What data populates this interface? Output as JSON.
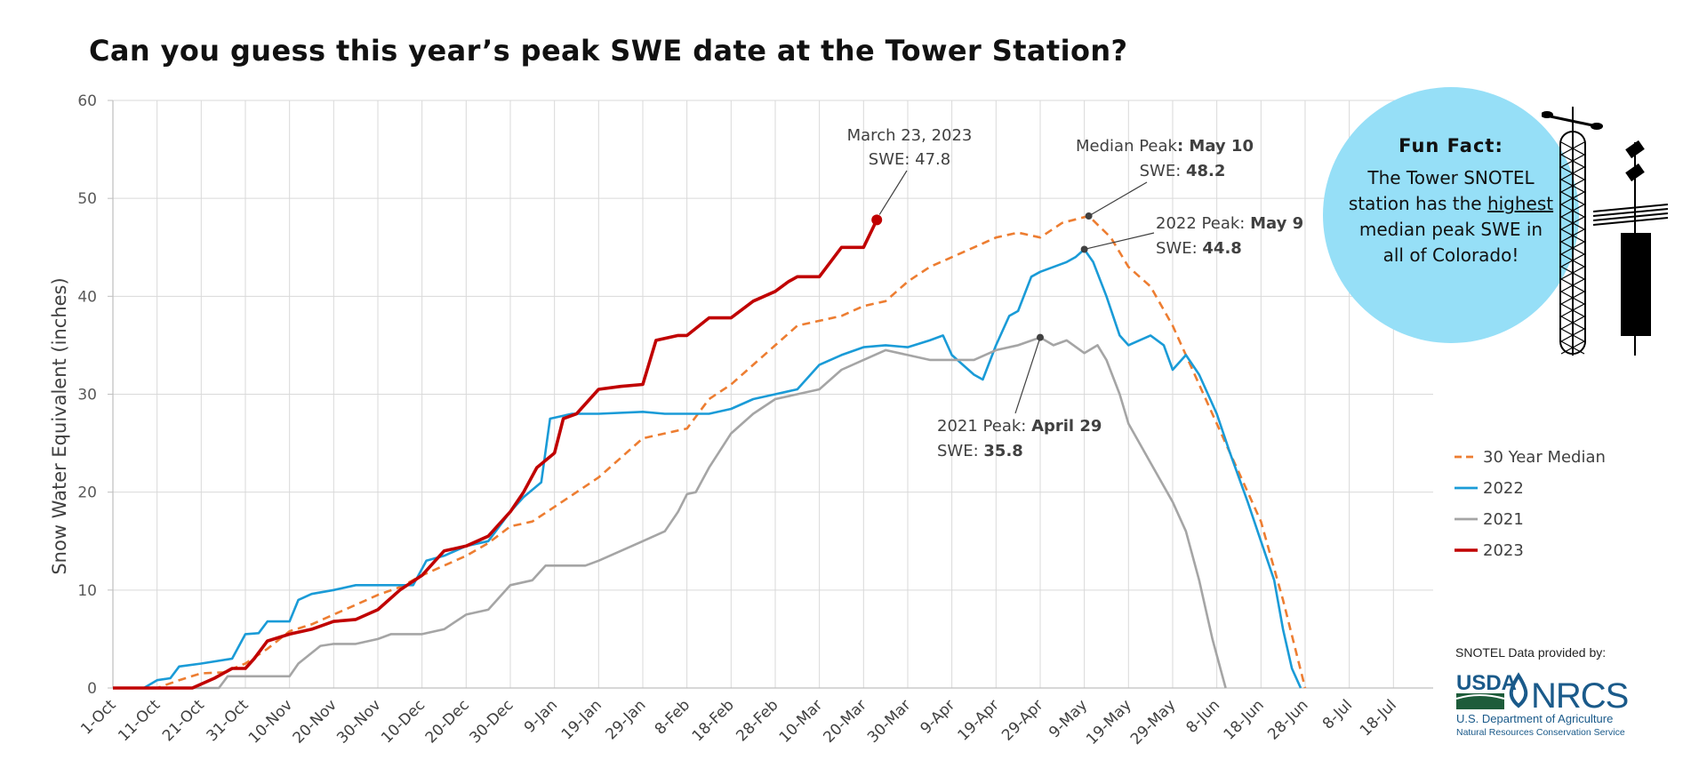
{
  "title": "Can you guess this year’s peak SWE date at the Tower Station?",
  "chart_data": {
    "type": "line",
    "ylabel": "Snow Water Equivalent (inches)",
    "xlabel": "",
    "ylim": [
      0,
      60
    ],
    "yticks": [
      0,
      10,
      20,
      30,
      40,
      50,
      60
    ],
    "xlim": [
      "Oct-1",
      "Jul-27"
    ],
    "xtick_labels": [
      "1-Oct",
      "11-Oct",
      "21-Oct",
      "31-Oct",
      "10-Nov",
      "20-Nov",
      "30-Nov",
      "10-Dec",
      "20-Dec",
      "30-Dec",
      "9-Jan",
      "19-Jan",
      "29-Jan",
      "8-Feb",
      "18-Feb",
      "28-Feb",
      "10-Mar",
      "20-Mar",
      "30-Mar",
      "9-Apr",
      "19-Apr",
      "29-Apr",
      "9-May",
      "19-May",
      "29-May",
      "8-Jun",
      "18-Jun",
      "28-Jun",
      "8-Jul",
      "18-Jul"
    ],
    "grid": true,
    "legend_position": "right",
    "series": [
      {
        "name": "30 Year Median",
        "color": "#ed7d31",
        "style": "dashed",
        "points": [
          [
            "Oct-1",
            0
          ],
          [
            "Oct-11",
            0
          ],
          [
            "Oct-16",
            0.8
          ],
          [
            "Oct-21",
            1.5
          ],
          [
            "Oct-26",
            1.6
          ],
          [
            "Oct-31",
            2.5
          ],
          [
            "Nov-5",
            4
          ],
          [
            "Nov-10",
            5.8
          ],
          [
            "Nov-15",
            6.5
          ],
          [
            "Nov-20",
            7.5
          ],
          [
            "Nov-25",
            8.5
          ],
          [
            "Nov-30",
            9.5
          ],
          [
            "Dec-5",
            10.3
          ],
          [
            "Dec-10",
            11.5
          ],
          [
            "Dec-15",
            12.5
          ],
          [
            "Dec-20",
            13.5
          ],
          [
            "Dec-25",
            14.8
          ],
          [
            "Dec-30",
            16.5
          ],
          [
            "Jan-4",
            17
          ],
          [
            "Jan-9",
            18.5
          ],
          [
            "Jan-14",
            20
          ],
          [
            "Jan-19",
            21.5
          ],
          [
            "Jan-24",
            23.5
          ],
          [
            "Jan-29",
            25.5
          ],
          [
            "Feb-3",
            26
          ],
          [
            "Feb-8",
            26.5
          ],
          [
            "Feb-13",
            29.5
          ],
          [
            "Feb-18",
            31
          ],
          [
            "Feb-23",
            33
          ],
          [
            "Feb-28",
            35
          ],
          [
            "Mar-5",
            37
          ],
          [
            "Mar-10",
            37.5
          ],
          [
            "Mar-15",
            38
          ],
          [
            "Mar-20",
            39
          ],
          [
            "Mar-25",
            39.5
          ],
          [
            "Mar-30",
            41.5
          ],
          [
            "Apr-4",
            43
          ],
          [
            "Apr-9",
            44
          ],
          [
            "Apr-14",
            45
          ],
          [
            "Apr-19",
            46
          ],
          [
            "Apr-24",
            46.5
          ],
          [
            "Apr-29",
            46
          ],
          [
            "May-4",
            47.5
          ],
          [
            "May-10",
            48.2
          ],
          [
            "May-15",
            46
          ],
          [
            "May-19",
            43
          ],
          [
            "May-24",
            41
          ],
          [
            "May-29",
            37
          ],
          [
            "Jun-3",
            32
          ],
          [
            "Jun-8",
            27
          ],
          [
            "Jun-13",
            22
          ],
          [
            "Jun-18",
            17
          ],
          [
            "Jun-23",
            9
          ],
          [
            "Jun-28",
            0
          ]
        ]
      },
      {
        "name": "2022",
        "color": "#1a9bd7",
        "style": "solid",
        "points": [
          [
            "Oct-1",
            0
          ],
          [
            "Oct-8",
            0
          ],
          [
            "Oct-11",
            0.8
          ],
          [
            "Oct-14",
            1
          ],
          [
            "Oct-16",
            2.2
          ],
          [
            "Oct-21",
            2.5
          ],
          [
            "Oct-28",
            3
          ],
          [
            "Oct-31",
            5.5
          ],
          [
            "Nov-3",
            5.6
          ],
          [
            "Nov-5",
            6.8
          ],
          [
            "Nov-10",
            6.8
          ],
          [
            "Nov-12",
            9
          ],
          [
            "Nov-15",
            9.6
          ],
          [
            "Nov-20",
            10
          ],
          [
            "Nov-25",
            10.5
          ],
          [
            "Nov-30",
            10.5
          ],
          [
            "Dec-8",
            10.5
          ],
          [
            "Dec-11",
            13
          ],
          [
            "Dec-15",
            13.5
          ],
          [
            "Dec-20",
            14.5
          ],
          [
            "Dec-25",
            15
          ],
          [
            "Dec-30",
            18
          ],
          [
            "Jan-2",
            19.5
          ],
          [
            "Jan-6",
            21
          ],
          [
            "Jan-8",
            27.5
          ],
          [
            "Jan-13",
            28
          ],
          [
            "Jan-19",
            28
          ],
          [
            "Jan-29",
            28.2
          ],
          [
            "Feb-3",
            28
          ],
          [
            "Feb-8",
            28
          ],
          [
            "Feb-13",
            28
          ],
          [
            "Feb-18",
            28.5
          ],
          [
            "Feb-23",
            29.5
          ],
          [
            "Feb-28",
            30
          ],
          [
            "Mar-5",
            30.5
          ],
          [
            "Mar-10",
            33
          ],
          [
            "Mar-15",
            34
          ],
          [
            "Mar-20",
            34.8
          ],
          [
            "Mar-25",
            35
          ],
          [
            "Mar-30",
            34.8
          ],
          [
            "Apr-4",
            35.5
          ],
          [
            "Apr-7",
            36
          ],
          [
            "Apr-9",
            34
          ],
          [
            "Apr-14",
            32
          ],
          [
            "Apr-16",
            31.5
          ],
          [
            "Apr-19",
            35
          ],
          [
            "Apr-22",
            38
          ],
          [
            "Apr-24",
            38.5
          ],
          [
            "Apr-27",
            42
          ],
          [
            "Apr-29",
            42.5
          ],
          [
            "May-2",
            43
          ],
          [
            "May-5",
            43.5
          ],
          [
            "May-7",
            44
          ],
          [
            "May-9",
            44.8
          ],
          [
            "May-11",
            43.5
          ],
          [
            "May-14",
            40
          ],
          [
            "May-17",
            36
          ],
          [
            "May-19",
            35
          ],
          [
            "May-24",
            36
          ],
          [
            "May-27",
            35
          ],
          [
            "May-29",
            32.5
          ],
          [
            "Jun-1",
            34
          ],
          [
            "Jun-4",
            32
          ],
          [
            "Jun-8",
            28
          ],
          [
            "Jun-11",
            24
          ],
          [
            "Jun-15",
            19
          ],
          [
            "Jun-18",
            15
          ],
          [
            "Jun-21",
            11
          ],
          [
            "Jun-23",
            6
          ],
          [
            "Jun-25",
            2
          ],
          [
            "Jun-27",
            0
          ]
        ]
      },
      {
        "name": "2021",
        "color": "#a5a5a5",
        "style": "solid",
        "points": [
          [
            "Oct-1",
            0
          ],
          [
            "Oct-25",
            0
          ],
          [
            "Oct-27",
            1.2
          ],
          [
            "Oct-31",
            1.2
          ],
          [
            "Nov-10",
            1.2
          ],
          [
            "Nov-12",
            2.5
          ],
          [
            "Nov-17",
            4.3
          ],
          [
            "Nov-20",
            4.5
          ],
          [
            "Nov-25",
            4.5
          ],
          [
            "Nov-30",
            5
          ],
          [
            "Dec-3",
            5.5
          ],
          [
            "Dec-10",
            5.5
          ],
          [
            "Dec-15",
            6
          ],
          [
            "Dec-20",
            7.5
          ],
          [
            "Dec-25",
            8
          ],
          [
            "Dec-30",
            10.5
          ],
          [
            "Jan-4",
            11
          ],
          [
            "Jan-7",
            12.5
          ],
          [
            "Jan-12",
            12.5
          ],
          [
            "Jan-16",
            12.5
          ],
          [
            "Jan-19",
            13
          ],
          [
            "Jan-24",
            14
          ],
          [
            "Jan-29",
            15
          ],
          [
            "Feb-3",
            16
          ],
          [
            "Feb-6",
            18
          ],
          [
            "Feb-8",
            19.8
          ],
          [
            "Feb-10",
            20
          ],
          [
            "Feb-13",
            22.5
          ],
          [
            "Feb-18",
            26
          ],
          [
            "Feb-23",
            28
          ],
          [
            "Feb-28",
            29.5
          ],
          [
            "Mar-5",
            30
          ],
          [
            "Mar-10",
            30.5
          ],
          [
            "Mar-15",
            32.5
          ],
          [
            "Mar-20",
            33.5
          ],
          [
            "Mar-25",
            34.5
          ],
          [
            "Mar-30",
            34
          ],
          [
            "Apr-4",
            33.5
          ],
          [
            "Apr-9",
            33.5
          ],
          [
            "Apr-14",
            33.5
          ],
          [
            "Apr-19",
            34.5
          ],
          [
            "Apr-24",
            35
          ],
          [
            "Apr-29",
            35.8
          ],
          [
            "May-2",
            35
          ],
          [
            "May-5",
            35.5
          ],
          [
            "May-9",
            34.2
          ],
          [
            "May-12",
            35
          ],
          [
            "May-14",
            33.5
          ],
          [
            "May-17",
            30
          ],
          [
            "May-19",
            27
          ],
          [
            "May-24",
            23
          ],
          [
            "May-29",
            19
          ],
          [
            "Jun-1",
            16
          ],
          [
            "Jun-4",
            11
          ],
          [
            "Jun-7",
            5
          ],
          [
            "Jun-10",
            0
          ]
        ]
      },
      {
        "name": "2023",
        "color": "#c00000",
        "style": "solid",
        "points": [
          [
            "Oct-1",
            0
          ],
          [
            "Oct-19",
            0
          ],
          [
            "Oct-24",
            1
          ],
          [
            "Oct-28",
            2
          ],
          [
            "Oct-31",
            2
          ],
          [
            "Nov-2",
            3
          ],
          [
            "Nov-5",
            4.8
          ],
          [
            "Nov-10",
            5.5
          ],
          [
            "Nov-15",
            6
          ],
          [
            "Nov-20",
            6.8
          ],
          [
            "Nov-25",
            7
          ],
          [
            "Nov-30",
            8
          ],
          [
            "Dec-5",
            10
          ],
          [
            "Dec-10",
            11.5
          ],
          [
            "Dec-15",
            14
          ],
          [
            "Dec-20",
            14.5
          ],
          [
            "Dec-25",
            15.5
          ],
          [
            "Dec-30",
            18
          ],
          [
            "Jan-2",
            20
          ],
          [
            "Jan-5",
            22.5
          ],
          [
            "Jan-9",
            24
          ],
          [
            "Jan-11",
            27.5
          ],
          [
            "Jan-14",
            28
          ],
          [
            "Jan-19",
            30.5
          ],
          [
            "Jan-24",
            30.8
          ],
          [
            "Jan-29",
            31
          ],
          [
            "Feb-1",
            35.5
          ],
          [
            "Feb-6",
            36
          ],
          [
            "Feb-8",
            36
          ],
          [
            "Feb-13",
            37.8
          ],
          [
            "Feb-18",
            37.8
          ],
          [
            "Feb-23",
            39.5
          ],
          [
            "Feb-28",
            40.5
          ],
          [
            "Mar-3",
            41.5
          ],
          [
            "Mar-5",
            42
          ],
          [
            "Mar-10",
            42
          ],
          [
            "Mar-15",
            45
          ],
          [
            "Mar-20",
            45
          ],
          [
            "Mar-23",
            47.8
          ]
        ]
      }
    ],
    "annotations": [
      {
        "lines": [
          "March 23, 2023",
          "SWE: 47.8"
        ],
        "point": [
          "Mar-23",
          47.8
        ]
      },
      {
        "lines": [
          "Median Peak: May 10",
          "SWE: 48.2"
        ],
        "point": [
          "May-10",
          48.2
        ]
      },
      {
        "lines": [
          "2022 Peak: May 9",
          "SWE: 44.8"
        ],
        "point": [
          "May-9",
          44.8
        ]
      },
      {
        "lines": [
          "2021 Peak: April 29",
          "SWE: 35.8"
        ],
        "point": [
          "Apr-29",
          35.8
        ]
      }
    ]
  },
  "annotation_text": {
    "a2023_l1": "March 23, 2023",
    "a2023_l2": "SWE: 47.8",
    "med_l1_a": "Median Peak",
    "med_l1_b": ": May 10",
    "med_l2_a": "SWE: ",
    "med_l2_b": "48.2",
    "p22_l1_a": "2022 Peak: ",
    "p22_l1_b": "May 9",
    "p22_l2_a": "SWE: ",
    "p22_l2_b": "44.8",
    "p21_l1_a": "2021 Peak: ",
    "p21_l1_b": "April 29",
    "p21_l2_a": "SWE: ",
    "p21_l2_b": "35.8"
  },
  "fun_fact": {
    "title": "Fun Fact:",
    "line_a": "The Tower SNOTEL station has the",
    "emph": "highest",
    "line_b": "median peak SWE in all of Colorado!"
  },
  "credit": {
    "text": "SNOTEL Data provided by:",
    "usda": "USDA",
    "nrcs": "NRCS",
    "agency1": "U.S. Department of Agriculture",
    "agency2": "Natural Resources Conservation Service"
  }
}
